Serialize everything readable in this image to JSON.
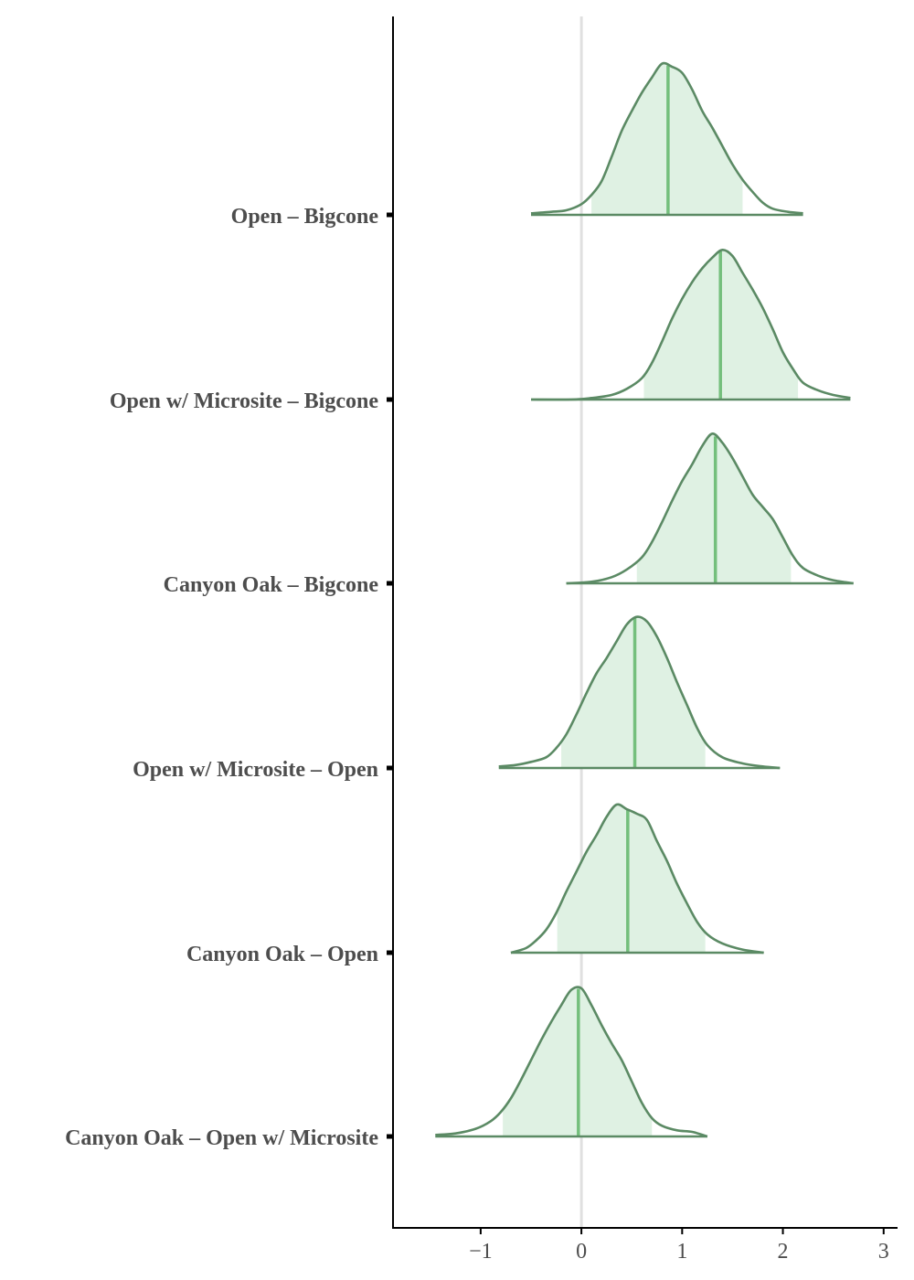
{
  "chart_data": {
    "type": "ridgeline",
    "title": "",
    "xlabel": "",
    "ylabel": "",
    "xlim": [
      -1.87,
      3.12
    ],
    "xticks": [
      -1,
      0,
      1,
      2,
      3
    ],
    "xtick_labels": [
      "−1",
      "0",
      "1",
      "2",
      "3"
    ],
    "reference_line_x": 0,
    "grid": false,
    "legend": "none",
    "fill_color": "#dff1e3",
    "line_color": "#5b8a64",
    "median_color": "#74bf7c",
    "reference_line_color": "#e0e0e0",
    "axis_color": "#000000",
    "text_color": "#4d4d4d",
    "categories": [
      "Open – Bigcone",
      "Open w/ Microsite – Bigcone",
      "Canyon Oak – Bigcone",
      "Open w/ Microsite – Open",
      "Canyon Oak – Open",
      "Canyon Oak – Open w/ Microsite"
    ],
    "series": [
      {
        "category": "Open – Bigcone",
        "median": 0.86,
        "interval": [
          0.1,
          1.6
        ],
        "range": [
          -0.5,
          2.2
        ],
        "density": [
          [
            -0.5,
            0.01
          ],
          [
            -0.3,
            0.02
          ],
          [
            -0.15,
            0.03
          ],
          [
            0.0,
            0.07
          ],
          [
            0.1,
            0.13
          ],
          [
            0.2,
            0.22
          ],
          [
            0.3,
            0.38
          ],
          [
            0.4,
            0.55
          ],
          [
            0.5,
            0.68
          ],
          [
            0.6,
            0.8
          ],
          [
            0.7,
            0.9
          ],
          [
            0.8,
            0.99
          ],
          [
            0.9,
            0.97
          ],
          [
            1.0,
            0.93
          ],
          [
            1.1,
            0.82
          ],
          [
            1.2,
            0.68
          ],
          [
            1.3,
            0.57
          ],
          [
            1.4,
            0.45
          ],
          [
            1.5,
            0.33
          ],
          [
            1.6,
            0.23
          ],
          [
            1.7,
            0.15
          ],
          [
            1.8,
            0.08
          ],
          [
            1.9,
            0.04
          ],
          [
            2.05,
            0.02
          ],
          [
            2.2,
            0.01
          ]
        ]
      },
      {
        "category": "Open w/ Microsite – Bigcone",
        "median": 1.38,
        "interval": [
          0.62,
          2.15
        ],
        "range": [
          -0.5,
          2.67
        ],
        "density": [
          [
            -0.5,
            0.0
          ],
          [
            -0.1,
            0.0
          ],
          [
            0.1,
            0.01
          ],
          [
            0.3,
            0.03
          ],
          [
            0.45,
            0.07
          ],
          [
            0.6,
            0.14
          ],
          [
            0.7,
            0.24
          ],
          [
            0.8,
            0.38
          ],
          [
            0.9,
            0.53
          ],
          [
            1.0,
            0.66
          ],
          [
            1.1,
            0.77
          ],
          [
            1.2,
            0.86
          ],
          [
            1.3,
            0.93
          ],
          [
            1.4,
            0.98
          ],
          [
            1.5,
            0.94
          ],
          [
            1.6,
            0.83
          ],
          [
            1.7,
            0.72
          ],
          [
            1.8,
            0.6
          ],
          [
            1.9,
            0.46
          ],
          [
            2.0,
            0.31
          ],
          [
            2.1,
            0.2
          ],
          [
            2.2,
            0.11
          ],
          [
            2.35,
            0.06
          ],
          [
            2.5,
            0.03
          ],
          [
            2.67,
            0.01
          ]
        ]
      },
      {
        "category": "Canyon Oak – Bigcone",
        "median": 1.33,
        "interval": [
          0.55,
          2.08
        ],
        "range": [
          -0.15,
          2.7
        ],
        "density": [
          [
            -0.15,
            0.0
          ],
          [
            0.1,
            0.01
          ],
          [
            0.3,
            0.04
          ],
          [
            0.45,
            0.09
          ],
          [
            0.6,
            0.17
          ],
          [
            0.7,
            0.27
          ],
          [
            0.8,
            0.4
          ],
          [
            0.9,
            0.54
          ],
          [
            1.0,
            0.67
          ],
          [
            1.1,
            0.78
          ],
          [
            1.2,
            0.9
          ],
          [
            1.3,
            0.98
          ],
          [
            1.4,
            0.92
          ],
          [
            1.5,
            0.82
          ],
          [
            1.6,
            0.7
          ],
          [
            1.7,
            0.58
          ],
          [
            1.8,
            0.5
          ],
          [
            1.9,
            0.42
          ],
          [
            2.0,
            0.3
          ],
          [
            2.1,
            0.18
          ],
          [
            2.2,
            0.1
          ],
          [
            2.35,
            0.05
          ],
          [
            2.5,
            0.02
          ],
          [
            2.7,
            0.0
          ]
        ]
      },
      {
        "category": "Open w/ Microsite – Open",
        "median": 0.53,
        "interval": [
          -0.2,
          1.23
        ],
        "range": [
          -0.82,
          1.97
        ],
        "density": [
          [
            -0.82,
            0.01
          ],
          [
            -0.65,
            0.02
          ],
          [
            -0.5,
            0.04
          ],
          [
            -0.35,
            0.07
          ],
          [
            -0.25,
            0.13
          ],
          [
            -0.15,
            0.22
          ],
          [
            -0.05,
            0.35
          ],
          [
            0.05,
            0.49
          ],
          [
            0.15,
            0.62
          ],
          [
            0.25,
            0.72
          ],
          [
            0.35,
            0.83
          ],
          [
            0.45,
            0.94
          ],
          [
            0.55,
            0.99
          ],
          [
            0.65,
            0.96
          ],
          [
            0.75,
            0.86
          ],
          [
            0.85,
            0.72
          ],
          [
            0.95,
            0.56
          ],
          [
            1.05,
            0.41
          ],
          [
            1.15,
            0.26
          ],
          [
            1.25,
            0.15
          ],
          [
            1.4,
            0.07
          ],
          [
            1.6,
            0.03
          ],
          [
            1.8,
            0.01
          ],
          [
            1.97,
            0.0
          ]
        ]
      },
      {
        "category": "Canyon Oak – Open",
        "median": 0.46,
        "interval": [
          -0.24,
          1.23
        ],
        "range": [
          -0.7,
          1.81
        ],
        "density": [
          [
            -0.7,
            0.0
          ],
          [
            -0.55,
            0.03
          ],
          [
            -0.45,
            0.08
          ],
          [
            -0.35,
            0.15
          ],
          [
            -0.25,
            0.26
          ],
          [
            -0.15,
            0.4
          ],
          [
            -0.05,
            0.53
          ],
          [
            0.05,
            0.66
          ],
          [
            0.15,
            0.77
          ],
          [
            0.25,
            0.89
          ],
          [
            0.35,
            0.97
          ],
          [
            0.45,
            0.94
          ],
          [
            0.55,
            0.91
          ],
          [
            0.65,
            0.87
          ],
          [
            0.75,
            0.73
          ],
          [
            0.85,
            0.6
          ],
          [
            0.95,
            0.45
          ],
          [
            1.05,
            0.32
          ],
          [
            1.15,
            0.2
          ],
          [
            1.25,
            0.12
          ],
          [
            1.4,
            0.06
          ],
          [
            1.6,
            0.02
          ],
          [
            1.81,
            0.0
          ]
        ]
      },
      {
        "category": "Canyon Oak – Open w/ Microsite",
        "median": -0.03,
        "interval": [
          -0.78,
          0.7
        ],
        "range": [
          -1.45,
          1.25
        ],
        "density": [
          [
            -1.45,
            0.01
          ],
          [
            -1.25,
            0.02
          ],
          [
            -1.05,
            0.05
          ],
          [
            -0.9,
            0.1
          ],
          [
            -0.8,
            0.16
          ],
          [
            -0.7,
            0.25
          ],
          [
            -0.6,
            0.37
          ],
          [
            -0.5,
            0.5
          ],
          [
            -0.4,
            0.63
          ],
          [
            -0.3,
            0.75
          ],
          [
            -0.2,
            0.86
          ],
          [
            -0.1,
            0.96
          ],
          [
            0.0,
            0.97
          ],
          [
            0.1,
            0.86
          ],
          [
            0.2,
            0.73
          ],
          [
            0.3,
            0.61
          ],
          [
            0.4,
            0.5
          ],
          [
            0.5,
            0.36
          ],
          [
            0.6,
            0.22
          ],
          [
            0.7,
            0.12
          ],
          [
            0.8,
            0.07
          ],
          [
            0.95,
            0.04
          ],
          [
            1.1,
            0.03
          ],
          [
            1.25,
            0.0
          ]
        ]
      }
    ]
  }
}
